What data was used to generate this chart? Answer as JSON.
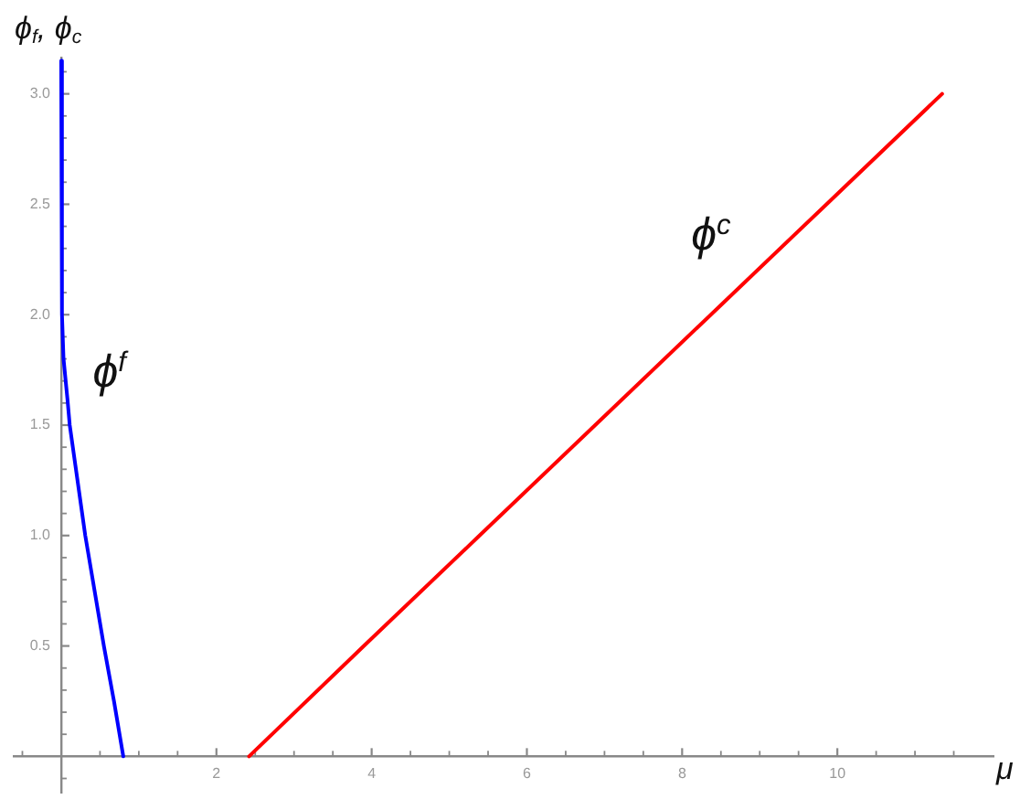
{
  "chart_data": {
    "type": "line",
    "ylabel": "ϕ$_{f}$, ϕ$_{c}$",
    "xlabel": "μ",
    "annotations": [
      {
        "text": "ϕ$^{f}$",
        "x": 0.05,
        "y": 1.72
      },
      {
        "text": "ϕ$^{c}$",
        "x": 8.88,
        "y": 2.17
      }
    ],
    "series": [
      {
        "color": "#0000ff",
        "x": [
          0,
          0.01,
          0.03,
          0.08,
          0.11,
          0.21,
          0.31,
          0.43,
          0.55,
          0.68,
          0.8
        ],
        "values": [
          3.15,
          2.0,
          1.8,
          1.62,
          1.5,
          1.25,
          1.0,
          0.75,
          0.5,
          0.25,
          0
        ]
      },
      {
        "color": "#ff0000",
        "x": [
          2.42,
          3.9,
          5.39,
          6.88,
          8.37,
          9.86,
          11.35
        ],
        "values": [
          0,
          0.5,
          1.0,
          1.5,
          2.0,
          2.5,
          3.0
        ]
      }
    ],
    "xlim": [
      -0.6,
      12
    ],
    "ylim": [
      -0.16,
      3.16
    ],
    "xticks": [
      {
        "value": -0.5,
        "label": null
      },
      {
        "value": 0.5,
        "label": null
      },
      {
        "value": 1,
        "label": null
      },
      {
        "value": 1.5,
        "label": null
      },
      2,
      {
        "value": 2.5,
        "label": null
      },
      {
        "value": 3,
        "label": null
      },
      {
        "value": 3.5,
        "label": null
      },
      4,
      {
        "value": 4.5,
        "label": null
      },
      {
        "value": 5,
        "label": null
      },
      {
        "value": 5.5,
        "label": null
      },
      6,
      {
        "value": 6.5,
        "label": null
      },
      {
        "value": 7,
        "label": null
      },
      {
        "value": 7.5,
        "label": null
      },
      8,
      {
        "value": 8.5,
        "label": null
      },
      {
        "value": 9,
        "label": null
      },
      {
        "value": 9.5,
        "label": null
      },
      10,
      {
        "value": 10.5,
        "label": null
      },
      {
        "value": 11,
        "label": null
      },
      {
        "value": 11.5,
        "label": null
      }
    ],
    "yticks": [
      {
        "value": -0.1,
        "label": null
      },
      {
        "value": 0.1,
        "label": null
      },
      {
        "value": 0.2,
        "label": null
      },
      {
        "value": 0.3,
        "label": null
      },
      {
        "value": 0.4,
        "label": null
      },
      0.5,
      {
        "value": 0.6,
        "label": null
      },
      {
        "value": 0.7,
        "label": null
      },
      {
        "value": 0.8,
        "label": null
      },
      {
        "value": 0.9,
        "label": null
      },
      {
        "value": 1,
        "label": "1.0"
      },
      {
        "value": 1.1,
        "label": null
      },
      {
        "value": 1.2,
        "label": null
      },
      {
        "value": 1.3,
        "label": null
      },
      {
        "value": 1.4,
        "label": null
      },
      1.5,
      {
        "value": 1.6,
        "label": null
      },
      {
        "value": 1.7,
        "label": null
      },
      {
        "value": 1.8,
        "label": null
      },
      {
        "value": 1.9,
        "label": null
      },
      {
        "value": 2,
        "label": "2.0"
      },
      {
        "value": 2.1,
        "label": null
      },
      {
        "value": 2.2,
        "label": null
      },
      {
        "value": 2.3,
        "label": null
      },
      {
        "value": 2.4,
        "label": null
      },
      2.5,
      {
        "value": 2.6,
        "label": null
      },
      {
        "value": 2.7,
        "label": null
      },
      {
        "value": 2.8,
        "label": null
      },
      {
        "value": 2.9,
        "label": null
      },
      {
        "value": 3,
        "label": "3.0"
      },
      {
        "value": 3.1,
        "label": null
      }
    ],
    "grid": false,
    "legend": false,
    "marker": "none"
  }
}
